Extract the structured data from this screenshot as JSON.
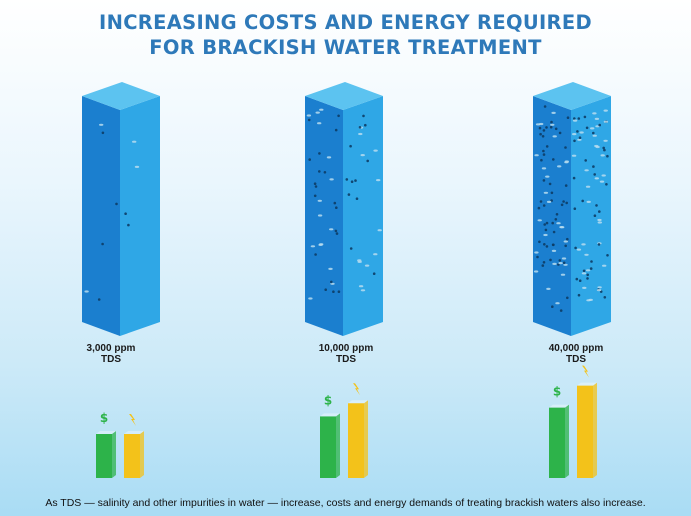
{
  "title": {
    "line1": "INCREASING COSTS AND ENERGY REQUIRED",
    "line2": "FOR BRACKISH WATER TREATMENT"
  },
  "columns": [
    {
      "concentration": "3,000 ppm",
      "unit": "TDS",
      "particle_level": 1
    },
    {
      "concentration": "10,000 ppm",
      "unit": "TDS",
      "particle_level": 3
    },
    {
      "concentration": "40,000 ppm",
      "unit": "TDS",
      "particle_level": 5
    }
  ],
  "indicators": {
    "cost_symbol": "$",
    "energy_symbol": "lightning-bolt-icon",
    "cost_levels": [
      1,
      1.4,
      1.6
    ],
    "energy_levels": [
      1,
      1.7,
      2.1
    ]
  },
  "colors": {
    "title": "#2e79b9",
    "water_front": "#1b7fcf",
    "water_side": "#2fa7e6",
    "water_top": "#5cc3f0",
    "cost": "#2db34a",
    "energy": "#f3c21a"
  },
  "caption": "As TDS — salinity and other impurities in water — increase, costs and energy demands of treating brackish waters also increase."
}
